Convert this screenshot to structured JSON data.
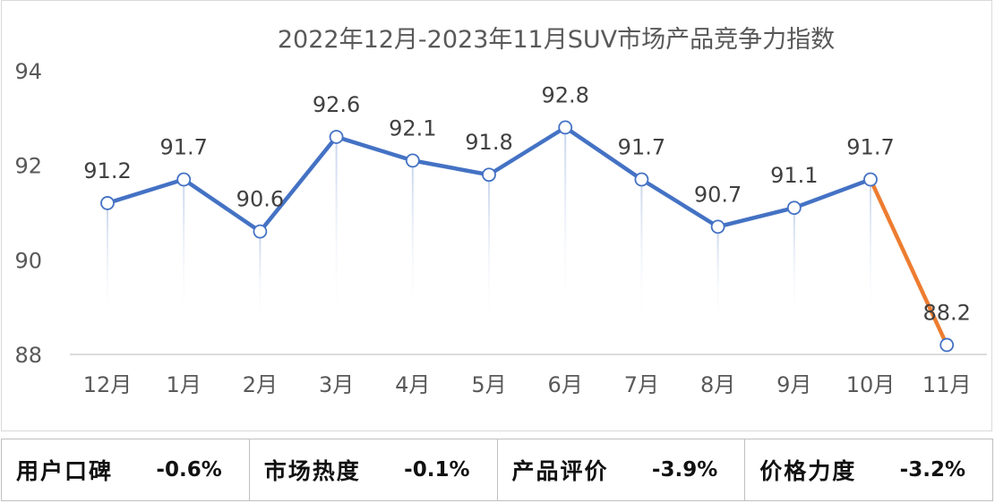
{
  "chart_data": {
    "type": "line",
    "title": "2022年12月-2023年11月SUV市场产品竞争力指数",
    "categories": [
      "12月",
      "1月",
      "2月",
      "3月",
      "4月",
      "5月",
      "6月",
      "7月",
      "8月",
      "9月",
      "10月",
      "11月"
    ],
    "values": [
      91.2,
      91.7,
      90.6,
      92.6,
      92.1,
      91.8,
      92.8,
      91.7,
      90.7,
      91.1,
      91.7,
      88.2
    ],
    "value_labels": [
      "91.2",
      "91.7",
      "90.6",
      "92.6",
      "92.1",
      "91.8",
      "92.8",
      "91.7",
      "90.7",
      "91.1",
      "91.7",
      "88.2"
    ],
    "ylim": [
      88,
      94
    ],
    "yticks": [
      "88",
      "90",
      "92",
      "94"
    ],
    "line_color": "#4472c4",
    "highlight_color": "#ed7d31",
    "highlight_segment_from_index": 10,
    "grid": false
  },
  "stats": [
    {
      "label": "用户口碑",
      "value": "-0.6%"
    },
    {
      "label": "市场热度",
      "value": "-0.1%"
    },
    {
      "label": "产品评价",
      "value": "-3.9%"
    },
    {
      "label": "价格力度",
      "value": "-3.2%"
    }
  ]
}
